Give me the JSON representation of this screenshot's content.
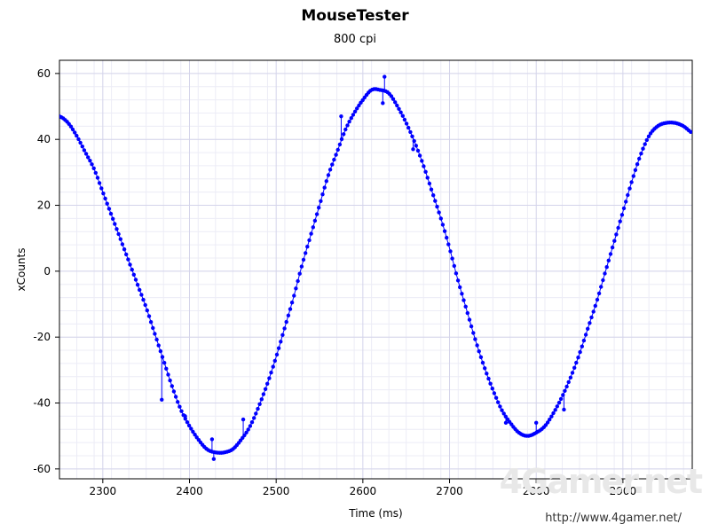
{
  "chart_data": {
    "type": "line",
    "title": "MouseTester",
    "subtitle": "800 cpi",
    "xlabel": "Time (ms)",
    "ylabel": "xCounts",
    "xlim": [
      2250,
      2980
    ],
    "ylim": [
      -63,
      64
    ],
    "x_ticks": [
      2300,
      2400,
      2500,
      2600,
      2700,
      2800,
      2900
    ],
    "y_ticks": [
      60,
      40,
      20,
      0,
      -20,
      -40,
      -60
    ],
    "grid": true,
    "line_color": "#0000ff",
    "series": [
      {
        "x": [
          2250,
          2260,
          2270,
          2280,
          2290,
          2300,
          2310,
          2320,
          2330,
          2340,
          2350,
          2360,
          2370,
          2380,
          2390,
          2400,
          2410,
          2420,
          2430,
          2440,
          2450,
          2460,
          2470,
          2480,
          2490,
          2500,
          2510,
          2520,
          2530,
          2540,
          2550,
          2560,
          2570,
          2580,
          2590,
          2600,
          2610,
          2620,
          2630,
          2640,
          2650,
          2660,
          2670,
          2680,
          2690,
          2700,
          2710,
          2720,
          2730,
          2740,
          2750,
          2760,
          2770,
          2780,
          2790,
          2800,
          2810,
          2820,
          2830,
          2840,
          2850,
          2860,
          2870,
          2880,
          2890,
          2900,
          2910,
          2920,
          2930,
          2940,
          2950,
          2960,
          2970,
          2980
        ],
        "y": [
          47,
          45,
          41,
          36,
          31,
          24,
          17,
          10,
          3,
          -4,
          -11,
          -19,
          -27,
          -35,
          -42,
          -47,
          -51,
          -54,
          -55,
          -55,
          -54,
          -51,
          -47,
          -41,
          -34,
          -26,
          -17,
          -8,
          2,
          11,
          20,
          29,
          36,
          43,
          48,
          52,
          55,
          55,
          54,
          50,
          45,
          39,
          32,
          24,
          16,
          7,
          -3,
          -12,
          -21,
          -29,
          -36,
          -42,
          -46,
          -49,
          -50,
          -49,
          -47,
          -43,
          -38,
          -32,
          -25,
          -17,
          -9,
          0,
          9,
          18,
          27,
          35,
          41,
          44,
          45,
          45,
          44,
          42
        ]
      }
    ],
    "outliers": [
      {
        "x": 2368,
        "y": -39
      },
      {
        "x": 2395,
        "y": -44
      },
      {
        "x": 2426,
        "y": -51
      },
      {
        "x": 2428,
        "y": -57
      },
      {
        "x": 2462,
        "y": -45
      },
      {
        "x": 2575,
        "y": 47
      },
      {
        "x": 2623,
        "y": 51
      },
      {
        "x": 2625,
        "y": 59
      },
      {
        "x": 2658,
        "y": 37
      },
      {
        "x": 2765,
        "y": -46
      },
      {
        "x": 2800,
        "y": -46
      },
      {
        "x": 2832,
        "y": -42
      }
    ]
  },
  "watermark": {
    "logo": "4Gamer.net",
    "url": "http://www.4gamer.net/"
  }
}
